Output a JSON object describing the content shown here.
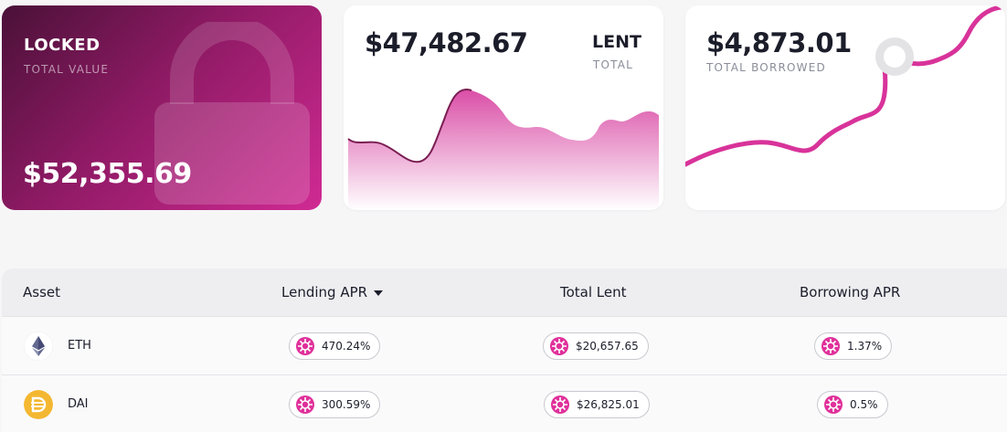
{
  "locked": {
    "title": "LOCKED",
    "subtitle": "TOTAL VALUE",
    "value": "$52,355.69",
    "icon": "lock-icon"
  },
  "lent": {
    "value": "$47,482.67",
    "label": "LENT",
    "subtitle": "TOTAL",
    "chart_color": "#d63a9d"
  },
  "borrowed": {
    "value": "$4,873.01",
    "subtitle": "TOTAL BORROWED",
    "chart_color": "#d8339a"
  },
  "table": {
    "headers": {
      "asset": "Asset",
      "lending_apr": "Lending APR",
      "total_lent": "Total Lent",
      "borrowing_apr": "Borrowing APR"
    },
    "sort_icon": "caret-down-icon",
    "rows": [
      {
        "asset": "ETH",
        "icon": "eth-icon",
        "lending_apr": "470.24%",
        "total_lent": "$20,657.65",
        "borrowing_apr": "1.37%"
      },
      {
        "asset": "DAI",
        "icon": "dai-icon",
        "lending_apr": "300.59%",
        "total_lent": "$26,825.01",
        "borrowing_apr": "0.5%"
      }
    ]
  },
  "colors": {
    "accent": "#e0309a",
    "locked_gradient_start": "#4a1138",
    "locked_gradient_end": "#d02a93",
    "dai": "#f4b731"
  }
}
